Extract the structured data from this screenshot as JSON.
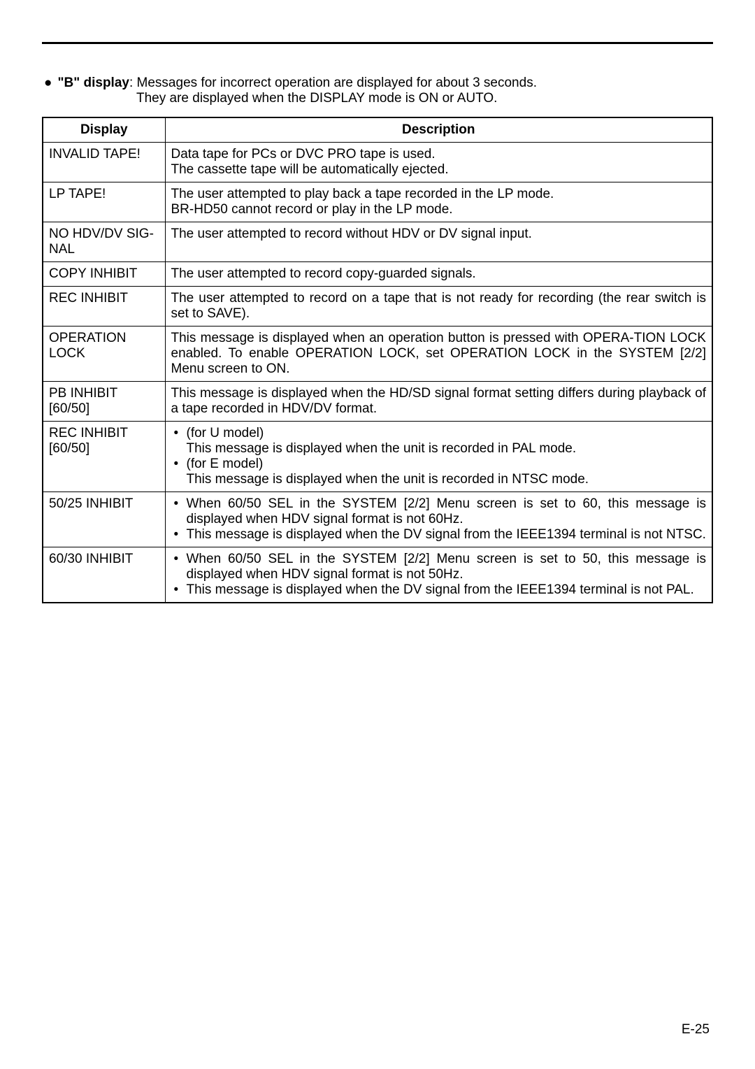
{
  "intro": {
    "bullet": "●",
    "label": "\"B\" display",
    "line1_rest": ": Messages for incorrect operation are displayed for about 3 seconds.",
    "line2": "They are displayed when the DISPLAY mode is ON or AUTO."
  },
  "table": {
    "headers": {
      "col1": "Display",
      "col2": "Description"
    },
    "rows": [
      {
        "display": "INVALID TAPE!",
        "description_lines": [
          "Data tape for PCs or DVC PRO tape is used.",
          "The cassette tape will be automatically ejected."
        ]
      },
      {
        "display": "LP TAPE!",
        "description_lines": [
          "The user attempted to play back a tape recorded in the LP mode.",
          "BR-HD50 cannot record or play in the LP mode."
        ]
      },
      {
        "display": "NO HDV/DV SIG-NAL",
        "description_lines": [
          "The user attempted to record without HDV or DV signal input."
        ]
      },
      {
        "display": "COPY INHIBIT",
        "description_lines": [
          "The user attempted to record copy-guarded signals."
        ]
      },
      {
        "display": "REC INHIBIT",
        "description_justify": "The user attempted to record on a tape that is not ready for recording (the rear switch is set to SAVE)."
      },
      {
        "display": "OPERATION LOCK",
        "description_justify": "This message is displayed when an operation button is pressed with OPERA-TION LOCK enabled. To enable OPERATION LOCK, set OPERATION LOCK in the SYSTEM [2/2] Menu screen to ON."
      },
      {
        "display": "PB INHIBIT [60/50]",
        "description_justify": "This message is displayed when the HD/SD signal format setting differs during playback of a tape recorded in HDV/DV format."
      },
      {
        "display": "REC INHIBIT [60/50]",
        "description_bullets": [
          "(for U model)\nThis message is displayed when the unit is recorded in PAL mode.",
          "(for E model)\nThis message is displayed when the unit is recorded in NTSC mode."
        ]
      },
      {
        "display": "50/25 INHIBIT",
        "description_bullets": [
          "When 60/50 SEL in the SYSTEM [2/2] Menu screen is set to 60, this message is displayed when HDV signal format is not 60Hz.",
          "This message is displayed when the DV signal from the IEEE1394 terminal is not NTSC."
        ]
      },
      {
        "display": "60/30 INHIBIT",
        "description_bullets": [
          "When 60/50 SEL in the SYSTEM [2/2] Menu screen is set to 50, this message is displayed when HDV signal format is not 50Hz.",
          "This message is displayed when the DV signal from the IEEE1394 terminal is not PAL."
        ]
      }
    ]
  },
  "page_number": "E-25"
}
